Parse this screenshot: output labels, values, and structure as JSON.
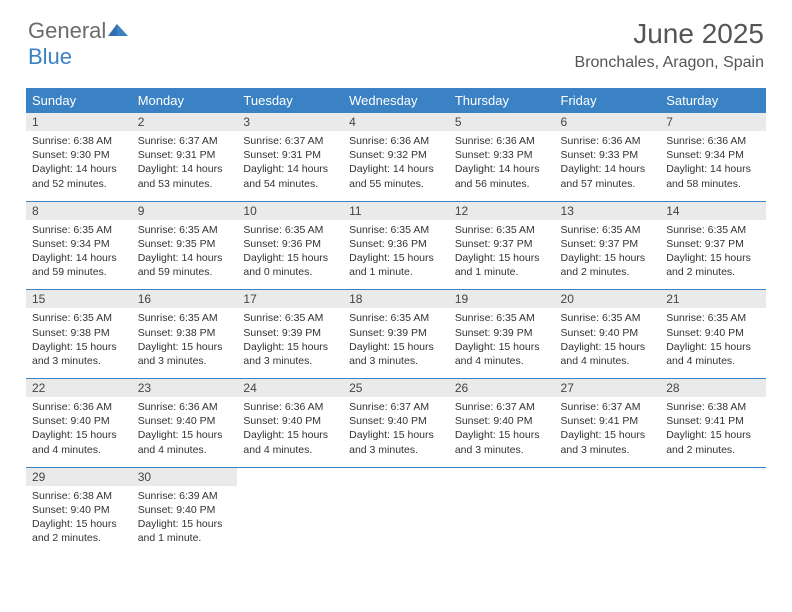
{
  "logo": {
    "general": "General",
    "blue": "Blue"
  },
  "title": "June 2025",
  "location": "Bronchales, Aragon, Spain",
  "weekdays": [
    "Sunday",
    "Monday",
    "Tuesday",
    "Wednesday",
    "Thursday",
    "Friday",
    "Saturday"
  ],
  "colors": {
    "header_bg": "#3a82c4",
    "daynum_bg": "#eaeaea",
    "row_border": "#3a82c4",
    "text": "#333333",
    "title_text": "#555555"
  },
  "weeks": [
    [
      {
        "num": "1",
        "sunrise": "Sunrise: 6:38 AM",
        "sunset": "Sunset: 9:30 PM",
        "daylight": "Daylight: 14 hours and 52 minutes."
      },
      {
        "num": "2",
        "sunrise": "Sunrise: 6:37 AM",
        "sunset": "Sunset: 9:31 PM",
        "daylight": "Daylight: 14 hours and 53 minutes."
      },
      {
        "num": "3",
        "sunrise": "Sunrise: 6:37 AM",
        "sunset": "Sunset: 9:31 PM",
        "daylight": "Daylight: 14 hours and 54 minutes."
      },
      {
        "num": "4",
        "sunrise": "Sunrise: 6:36 AM",
        "sunset": "Sunset: 9:32 PM",
        "daylight": "Daylight: 14 hours and 55 minutes."
      },
      {
        "num": "5",
        "sunrise": "Sunrise: 6:36 AM",
        "sunset": "Sunset: 9:33 PM",
        "daylight": "Daylight: 14 hours and 56 minutes."
      },
      {
        "num": "6",
        "sunrise": "Sunrise: 6:36 AM",
        "sunset": "Sunset: 9:33 PM",
        "daylight": "Daylight: 14 hours and 57 minutes."
      },
      {
        "num": "7",
        "sunrise": "Sunrise: 6:36 AM",
        "sunset": "Sunset: 9:34 PM",
        "daylight": "Daylight: 14 hours and 58 minutes."
      }
    ],
    [
      {
        "num": "8",
        "sunrise": "Sunrise: 6:35 AM",
        "sunset": "Sunset: 9:34 PM",
        "daylight": "Daylight: 14 hours and 59 minutes."
      },
      {
        "num": "9",
        "sunrise": "Sunrise: 6:35 AM",
        "sunset": "Sunset: 9:35 PM",
        "daylight": "Daylight: 14 hours and 59 minutes."
      },
      {
        "num": "10",
        "sunrise": "Sunrise: 6:35 AM",
        "sunset": "Sunset: 9:36 PM",
        "daylight": "Daylight: 15 hours and 0 minutes."
      },
      {
        "num": "11",
        "sunrise": "Sunrise: 6:35 AM",
        "sunset": "Sunset: 9:36 PM",
        "daylight": "Daylight: 15 hours and 1 minute."
      },
      {
        "num": "12",
        "sunrise": "Sunrise: 6:35 AM",
        "sunset": "Sunset: 9:37 PM",
        "daylight": "Daylight: 15 hours and 1 minute."
      },
      {
        "num": "13",
        "sunrise": "Sunrise: 6:35 AM",
        "sunset": "Sunset: 9:37 PM",
        "daylight": "Daylight: 15 hours and 2 minutes."
      },
      {
        "num": "14",
        "sunrise": "Sunrise: 6:35 AM",
        "sunset": "Sunset: 9:37 PM",
        "daylight": "Daylight: 15 hours and 2 minutes."
      }
    ],
    [
      {
        "num": "15",
        "sunrise": "Sunrise: 6:35 AM",
        "sunset": "Sunset: 9:38 PM",
        "daylight": "Daylight: 15 hours and 3 minutes."
      },
      {
        "num": "16",
        "sunrise": "Sunrise: 6:35 AM",
        "sunset": "Sunset: 9:38 PM",
        "daylight": "Daylight: 15 hours and 3 minutes."
      },
      {
        "num": "17",
        "sunrise": "Sunrise: 6:35 AM",
        "sunset": "Sunset: 9:39 PM",
        "daylight": "Daylight: 15 hours and 3 minutes."
      },
      {
        "num": "18",
        "sunrise": "Sunrise: 6:35 AM",
        "sunset": "Sunset: 9:39 PM",
        "daylight": "Daylight: 15 hours and 3 minutes."
      },
      {
        "num": "19",
        "sunrise": "Sunrise: 6:35 AM",
        "sunset": "Sunset: 9:39 PM",
        "daylight": "Daylight: 15 hours and 4 minutes."
      },
      {
        "num": "20",
        "sunrise": "Sunrise: 6:35 AM",
        "sunset": "Sunset: 9:40 PM",
        "daylight": "Daylight: 15 hours and 4 minutes."
      },
      {
        "num": "21",
        "sunrise": "Sunrise: 6:35 AM",
        "sunset": "Sunset: 9:40 PM",
        "daylight": "Daylight: 15 hours and 4 minutes."
      }
    ],
    [
      {
        "num": "22",
        "sunrise": "Sunrise: 6:36 AM",
        "sunset": "Sunset: 9:40 PM",
        "daylight": "Daylight: 15 hours and 4 minutes."
      },
      {
        "num": "23",
        "sunrise": "Sunrise: 6:36 AM",
        "sunset": "Sunset: 9:40 PM",
        "daylight": "Daylight: 15 hours and 4 minutes."
      },
      {
        "num": "24",
        "sunrise": "Sunrise: 6:36 AM",
        "sunset": "Sunset: 9:40 PM",
        "daylight": "Daylight: 15 hours and 4 minutes."
      },
      {
        "num": "25",
        "sunrise": "Sunrise: 6:37 AM",
        "sunset": "Sunset: 9:40 PM",
        "daylight": "Daylight: 15 hours and 3 minutes."
      },
      {
        "num": "26",
        "sunrise": "Sunrise: 6:37 AM",
        "sunset": "Sunset: 9:40 PM",
        "daylight": "Daylight: 15 hours and 3 minutes."
      },
      {
        "num": "27",
        "sunrise": "Sunrise: 6:37 AM",
        "sunset": "Sunset: 9:41 PM",
        "daylight": "Daylight: 15 hours and 3 minutes."
      },
      {
        "num": "28",
        "sunrise": "Sunrise: 6:38 AM",
        "sunset": "Sunset: 9:41 PM",
        "daylight": "Daylight: 15 hours and 2 minutes."
      }
    ],
    [
      {
        "num": "29",
        "sunrise": "Sunrise: 6:38 AM",
        "sunset": "Sunset: 9:40 PM",
        "daylight": "Daylight: 15 hours and 2 minutes."
      },
      {
        "num": "30",
        "sunrise": "Sunrise: 6:39 AM",
        "sunset": "Sunset: 9:40 PM",
        "daylight": "Daylight: 15 hours and 1 minute."
      },
      null,
      null,
      null,
      null,
      null
    ]
  ]
}
